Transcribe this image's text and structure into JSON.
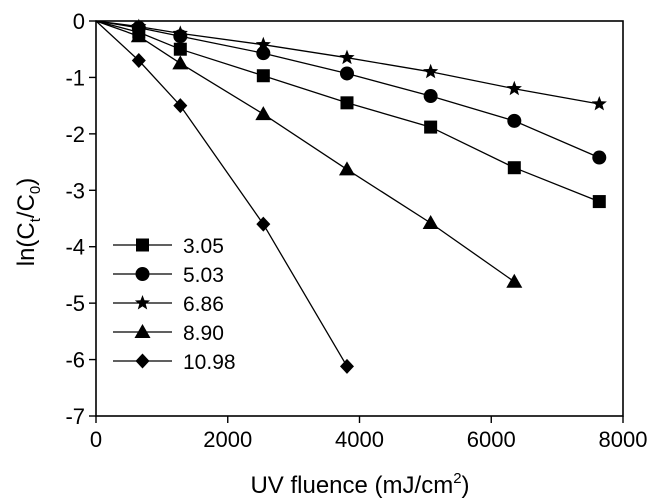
{
  "chart_data": {
    "type": "line",
    "xlabel": {
      "main": "UV fluence (mJ/cm",
      "sup": "2",
      "tail": ")"
    },
    "ylabel": {
      "pre": "ln(C",
      "sub1": "t",
      "mid": "/C",
      "sub2": "0",
      "tail": ")"
    },
    "xlim": [
      0,
      8000
    ],
    "ylim": [
      -7,
      0
    ],
    "xticks": [
      0,
      2000,
      4000,
      6000,
      8000
    ],
    "yticks": [
      0,
      -1,
      -2,
      -3,
      -4,
      -5,
      -6,
      -7
    ],
    "grid": false,
    "legend_position": "bottom-left",
    "series": [
      {
        "name": "3.05",
        "marker": "square",
        "x": [
          0,
          650,
          1280,
          2540,
          3810,
          5080,
          6350,
          7640
        ],
        "y": [
          0,
          -0.2,
          -0.5,
          -0.97,
          -1.45,
          -1.88,
          -2.6,
          -3.2
        ]
      },
      {
        "name": "5.03",
        "marker": "circle",
        "x": [
          0,
          650,
          1280,
          2540,
          3810,
          5080,
          6350,
          7640
        ],
        "y": [
          0,
          -0.12,
          -0.27,
          -0.57,
          -0.93,
          -1.33,
          -1.77,
          -2.42
        ]
      },
      {
        "name": "6.86",
        "marker": "star",
        "x": [
          0,
          650,
          1280,
          2540,
          3810,
          5080,
          6350,
          7640
        ],
        "y": [
          0,
          -0.1,
          -0.22,
          -0.42,
          -0.65,
          -0.9,
          -1.2,
          -1.47
        ]
      },
      {
        "name": "8.90",
        "marker": "triangle",
        "x": [
          0,
          650,
          1280,
          2540,
          3810,
          5080,
          6350
        ],
        "y": [
          0,
          -0.27,
          -0.75,
          -1.65,
          -2.63,
          -3.58,
          -4.62
        ]
      },
      {
        "name": "10.98",
        "marker": "diamond",
        "x": [
          0,
          650,
          1280,
          2540,
          3810
        ],
        "y": [
          0,
          -0.7,
          -1.5,
          -3.6,
          -6.12
        ]
      }
    ]
  }
}
